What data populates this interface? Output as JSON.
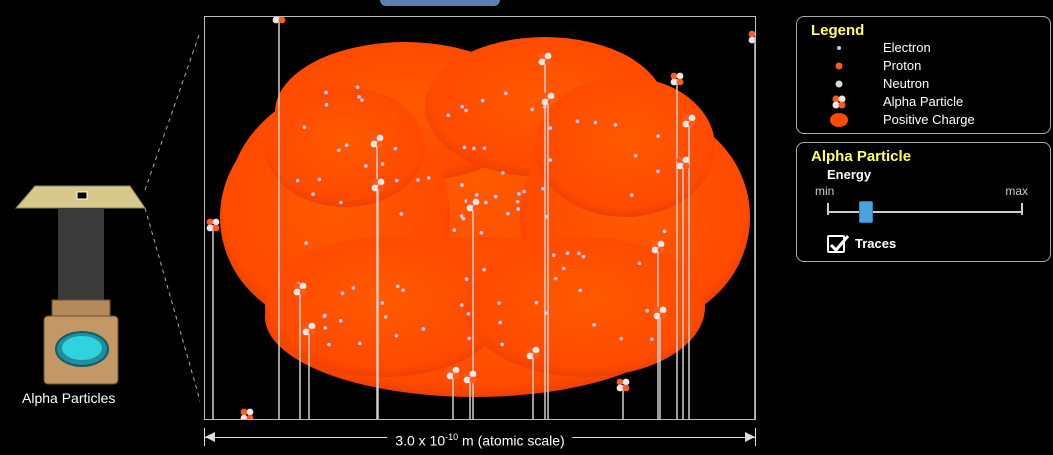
{
  "gun": {
    "label": "Alpha Particles"
  },
  "scale": {
    "base": "3.0 x 10",
    "exponent": "-10",
    "unit": " m (atomic scale)"
  },
  "legend": {
    "title": "Legend",
    "items": [
      {
        "label": "Electron",
        "icon": "electron-icon",
        "color": "#c8c8ff"
      },
      {
        "label": "Proton",
        "icon": "proton-icon",
        "color": "#ff5a1e"
      },
      {
        "label": "Neutron",
        "icon": "neutron-icon",
        "color": "#d8d8d8"
      },
      {
        "label": "Alpha Particle",
        "icon": "alpha-particle-icon",
        "color": "#ff5a1e"
      },
      {
        "label": "Positive Charge",
        "icon": "positive-charge-icon",
        "color": "#ff4a00"
      }
    ]
  },
  "alpha_panel": {
    "title": "Alpha Particle",
    "energy_label": "Energy",
    "min_label": "min",
    "max_label": "max",
    "energy_level": 0.2,
    "traces_label": "Traces",
    "traces_checked": true
  },
  "colors": {
    "charge": "#ff4d00",
    "title": "#ffff66",
    "slider": "#4aa3df"
  }
}
